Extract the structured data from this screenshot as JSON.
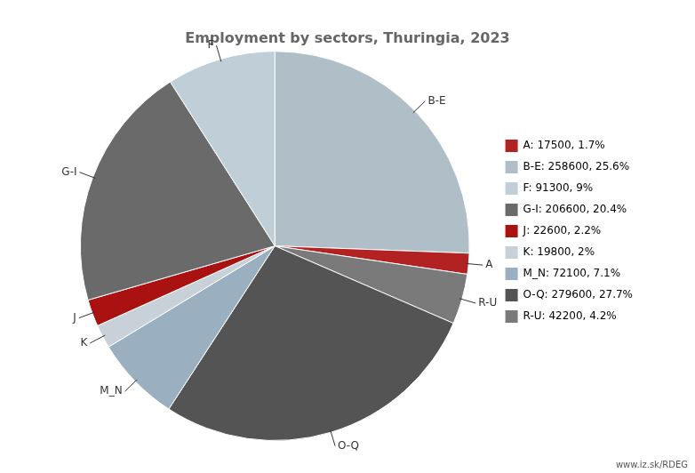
{
  "chart_data": {
    "type": "pie",
    "title": "Employment by sectors, Thuringia, 2023",
    "categories": [
      "B-E",
      "A",
      "R-U",
      "O-Q",
      "M_N",
      "K",
      "J",
      "G-I",
      "F"
    ],
    "values": [
      258600,
      17500,
      42200,
      279600,
      72100,
      19800,
      22600,
      206600,
      91300
    ],
    "colors": [
      "#b0bec8",
      "#b22222",
      "#7a7a7a",
      "#545454",
      "#9ab0c0",
      "#c8d0d8",
      "#aa1111",
      "#6a6a6a",
      "#c0ced8"
    ],
    "legend": "right",
    "legend_labels": [
      {
        "category": "A",
        "label": "A: 17500, 1.7%"
      },
      {
        "category": "B-E",
        "label": "B-E: 258600, 25.6%"
      },
      {
        "category": "F",
        "label": "F: 91300, 9%"
      },
      {
        "category": "G-I",
        "label": "G-I: 206600, 20.4%"
      },
      {
        "category": "J",
        "label": "J: 22600, 2.2%"
      },
      {
        "category": "K",
        "label": "K: 19800, 2%"
      },
      {
        "category": "M_N",
        "label": "M_N: 72100, 7.1%"
      },
      {
        "category": "O-Q",
        "label": "O-Q: 279600, 27.7%"
      },
      {
        "category": "R-U",
        "label": "R-U: 42200, 4.2%"
      }
    ],
    "annotations": [
      "www.iz.sk/RDEG"
    ]
  }
}
